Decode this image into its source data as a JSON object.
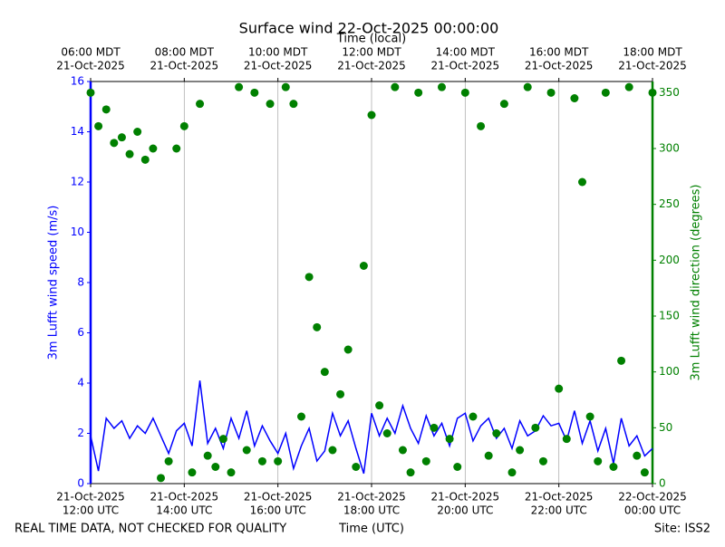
{
  "chart_data": {
    "type": "line",
    "title": "Surface wind 22-Oct-2025 00:00:00",
    "x2label": "Time (local)",
    "xlabel": "Time (UTC)",
    "ylabel": "3m Lufft wind speed (m/s)",
    "y2label": "3m Lufft wind direction (degrees)",
    "footer_left": "REAL TIME DATA, NOT CHECKED FOR QUALITY",
    "footer_right": "Site: ISS2",
    "x": [
      "2025-10-21T12:00",
      "2025-10-21T12:10",
      "2025-10-21T12:20",
      "2025-10-21T12:30",
      "2025-10-21T12:40",
      "2025-10-21T12:50",
      "2025-10-21T13:00",
      "2025-10-21T13:10",
      "2025-10-21T13:20",
      "2025-10-21T13:30",
      "2025-10-21T13:40",
      "2025-10-21T13:50",
      "2025-10-21T14:00",
      "2025-10-21T14:10",
      "2025-10-21T14:20",
      "2025-10-21T14:30",
      "2025-10-21T14:40",
      "2025-10-21T14:50",
      "2025-10-21T15:00",
      "2025-10-21T15:10",
      "2025-10-21T15:20",
      "2025-10-21T15:30",
      "2025-10-21T15:40",
      "2025-10-21T15:50",
      "2025-10-21T16:00",
      "2025-10-21T16:10",
      "2025-10-21T16:20",
      "2025-10-21T16:30",
      "2025-10-21T16:40",
      "2025-10-21T16:50",
      "2025-10-21T17:00",
      "2025-10-21T17:10",
      "2025-10-21T17:20",
      "2025-10-21T17:30",
      "2025-10-21T17:40",
      "2025-10-21T17:50",
      "2025-10-21T18:00",
      "2025-10-21T18:10",
      "2025-10-21T18:20",
      "2025-10-21T18:30",
      "2025-10-21T18:40",
      "2025-10-21T18:50",
      "2025-10-21T19:00",
      "2025-10-21T19:10",
      "2025-10-21T19:20",
      "2025-10-21T19:30",
      "2025-10-21T19:40",
      "2025-10-21T19:50",
      "2025-10-21T20:00",
      "2025-10-21T20:10",
      "2025-10-21T20:20",
      "2025-10-21T20:30",
      "2025-10-21T20:40",
      "2025-10-21T20:50",
      "2025-10-21T21:00",
      "2025-10-21T21:10",
      "2025-10-21T21:20",
      "2025-10-21T21:30",
      "2025-10-21T21:40",
      "2025-10-21T21:50",
      "2025-10-21T22:00",
      "2025-10-21T22:10",
      "2025-10-21T22:20",
      "2025-10-21T22:30",
      "2025-10-21T22:40",
      "2025-10-21T22:50",
      "2025-10-21T23:00",
      "2025-10-21T23:10",
      "2025-10-21T23:20",
      "2025-10-21T23:30",
      "2025-10-21T23:40",
      "2025-10-21T23:50",
      "2025-10-22T00:00"
    ],
    "xlim": [
      "2025-10-21T12:00",
      "2025-10-22T00:00"
    ],
    "xticks": [
      {
        "value": "2025-10-21T12:00",
        "label": [
          "21-Oct-2025",
          "12:00 UTC"
        ]
      },
      {
        "value": "2025-10-21T14:00",
        "label": [
          "21-Oct-2025",
          "14:00 UTC"
        ]
      },
      {
        "value": "2025-10-21T16:00",
        "label": [
          "21-Oct-2025",
          "16:00 UTC"
        ]
      },
      {
        "value": "2025-10-21T18:00",
        "label": [
          "21-Oct-2025",
          "18:00 UTC"
        ]
      },
      {
        "value": "2025-10-21T20:00",
        "label": [
          "21-Oct-2025",
          "20:00 UTC"
        ]
      },
      {
        "value": "2025-10-21T22:00",
        "label": [
          "21-Oct-2025",
          "22:00 UTC"
        ]
      },
      {
        "value": "2025-10-22T00:00",
        "label": [
          "22-Oct-2025",
          "00:00 UTC"
        ]
      }
    ],
    "x2ticks": [
      {
        "value": "2025-10-21T12:00",
        "label": [
          "06:00 MDT",
          "21-Oct-2025"
        ]
      },
      {
        "value": "2025-10-21T14:00",
        "label": [
          "08:00 MDT",
          "21-Oct-2025"
        ]
      },
      {
        "value": "2025-10-21T16:00",
        "label": [
          "10:00 MDT",
          "21-Oct-2025"
        ]
      },
      {
        "value": "2025-10-21T18:00",
        "label": [
          "12:00 MDT",
          "21-Oct-2025"
        ]
      },
      {
        "value": "2025-10-21T20:00",
        "label": [
          "14:00 MDT",
          "21-Oct-2025"
        ]
      },
      {
        "value": "2025-10-21T22:00",
        "label": [
          "16:00 MDT",
          "21-Oct-2025"
        ]
      },
      {
        "value": "2025-10-22T00:00",
        "label": [
          "18:00 MDT",
          "21-Oct-2025"
        ]
      }
    ],
    "ylim": [
      0,
      16
    ],
    "yticks": [
      0,
      2,
      4,
      6,
      8,
      10,
      12,
      14,
      16
    ],
    "y2lim": [
      0,
      360
    ],
    "y2ticks": [
      0,
      50,
      100,
      150,
      200,
      250,
      300,
      350
    ],
    "xgrid": true,
    "series": [
      {
        "name": "3m Lufft wind speed",
        "type": "line",
        "color": "#0000ff",
        "axis": "y",
        "values": [
          1.9,
          0.5,
          2.6,
          2.2,
          2.5,
          1.8,
          2.3,
          2.0,
          2.6,
          1.9,
          1.2,
          2.1,
          2.4,
          1.5,
          4.1,
          1.6,
          2.2,
          1.4,
          2.6,
          1.8,
          2.9,
          1.5,
          2.3,
          1.7,
          1.2,
          2.0,
          0.6,
          1.5,
          2.2,
          0.9,
          1.3,
          2.8,
          1.9,
          2.5,
          1.4,
          0.4,
          2.8,
          1.9,
          2.6,
          2.0,
          3.1,
          2.2,
          1.6,
          2.7,
          1.9,
          2.4,
          1.5,
          2.6,
          2.8,
          1.7,
          2.3,
          2.6,
          1.8,
          2.2,
          1.4,
          2.5,
          1.9,
          2.1,
          2.7,
          2.3,
          2.4,
          1.7,
          2.9,
          1.6,
          2.5,
          1.3,
          2.2,
          0.8,
          2.6,
          1.5,
          1.9,
          1.1,
          1.4
        ]
      },
      {
        "name": "3m Lufft wind direction",
        "type": "scatter",
        "color": "#008000",
        "axis": "y2",
        "values": [
          350,
          320,
          335,
          305,
          310,
          295,
          315,
          290,
          300,
          5,
          20,
          300,
          320,
          10,
          340,
          25,
          15,
          40,
          10,
          355,
          30,
          350,
          20,
          340,
          20,
          355,
          340,
          60,
          185,
          140,
          100,
          30,
          80,
          120,
          15,
          195,
          330,
          70,
          45,
          355,
          30,
          10,
          350,
          20,
          50,
          355,
          40,
          15,
          350,
          60,
          320,
          25,
          45,
          340,
          10,
          30,
          355,
          50,
          20,
          350,
          85,
          40,
          345,
          270,
          60,
          20,
          350,
          15,
          110,
          355,
          25,
          10,
          350
        ]
      }
    ]
  }
}
